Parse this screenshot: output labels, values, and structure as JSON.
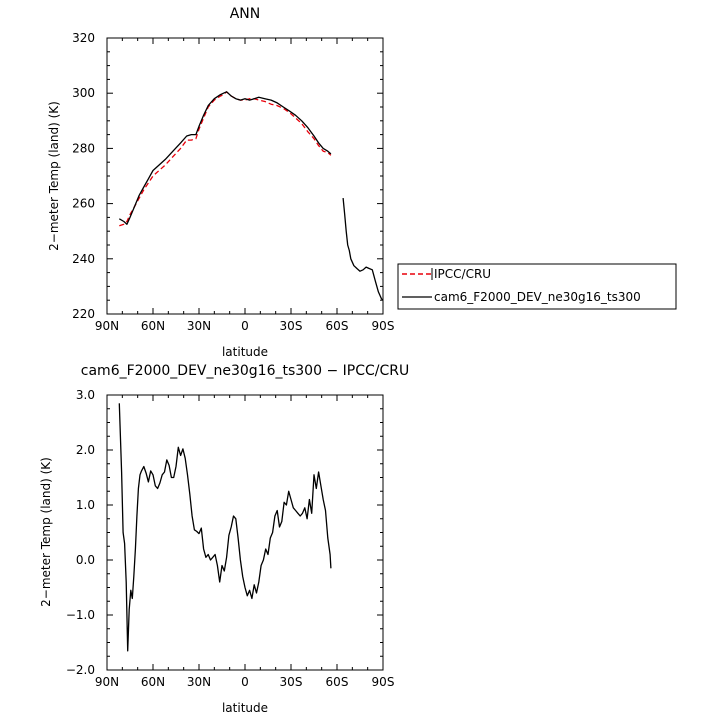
{
  "chart_data": [
    {
      "type": "line",
      "title": "ANN",
      "xlabel": "latitude",
      "ylabel": "2−meter Temp (land) (K)",
      "xlim": [
        90,
        -90
      ],
      "ylim": [
        220,
        320
      ],
      "x_ticks": [
        90,
        60,
        30,
        0,
        -30,
        -60,
        -90
      ],
      "x_tick_labels": [
        "90N",
        "60N",
        "30N",
        "0",
        "30S",
        "60S",
        "90S"
      ],
      "y_ticks": [
        220,
        240,
        260,
        280,
        300,
        320
      ],
      "y_tick_labels": [
        "220",
        "240",
        "260",
        "280",
        "300",
        "320"
      ],
      "legend_position": "right",
      "series": [
        {
          "name": "IPCC/CRU",
          "color": "#e8000b",
          "dash": "dashed",
          "x": [
            82,
            79,
            77,
            75,
            72,
            69,
            66,
            63,
            60,
            56,
            52,
            47,
            42,
            38,
            35,
            32,
            30,
            27,
            24,
            20,
            16,
            14,
            12,
            9,
            6,
            3,
            0,
            -3,
            -6,
            -9,
            -13,
            -17,
            -21,
            -25,
            -29,
            -33,
            -37,
            -41,
            -45,
            -48,
            -51,
            -54,
            -56
          ],
          "y": [
            252,
            252.5,
            253.5,
            256,
            259,
            262,
            265,
            267.5,
            270,
            272,
            274,
            277,
            280,
            283,
            283,
            283.5,
            287,
            291,
            295,
            297.5,
            299,
            299.5,
            300.5,
            299,
            298,
            297.5,
            297.5,
            298,
            298,
            297.5,
            297,
            296,
            295.5,
            294.5,
            293,
            291,
            289,
            286,
            283.5,
            281,
            279,
            278.5,
            277.5
          ]
        },
        {
          "name": "cam6_F2000_DEV_ne30g16_ts300",
          "color": "#000000",
          "dash": "solid",
          "x": [
            82,
            79,
            77,
            75,
            72,
            69,
            66,
            63,
            60,
            56,
            52,
            47,
            42,
            38,
            35,
            32,
            30,
            27,
            24,
            20,
            16,
            14,
            12,
            9,
            6,
            3,
            0,
            -3,
            -6,
            -9,
            -13,
            -17,
            -21,
            -25,
            -29,
            -33,
            -37,
            -41,
            -45,
            -48,
            -51,
            -54,
            -56
          ],
          "y": [
            254.5,
            253.5,
            252.5,
            255,
            259,
            263,
            266,
            269,
            272,
            274,
            276,
            279,
            282,
            284.5,
            285,
            285,
            288,
            292,
            295.5,
            298,
            299.5,
            300,
            300.5,
            299,
            298,
            297.5,
            298,
            297.5,
            298,
            298.5,
            298,
            297.5,
            296.5,
            295,
            293.5,
            292,
            290,
            287.5,
            284.5,
            282,
            280,
            279,
            278
          ]
        },
        {
          "name": "",
          "color": "#000000",
          "dash": "solid",
          "x": [
            -64,
            -65,
            -66,
            -67,
            -68,
            -69,
            -71,
            -73,
            -75,
            -77,
            -79,
            -81,
            -83,
            -85,
            -87,
            -89,
            -90
          ],
          "y": [
            262,
            256,
            250,
            245,
            243,
            240,
            237.5,
            236.5,
            235.5,
            236,
            237,
            236.5,
            236,
            232,
            228,
            225.5,
            225
          ]
        }
      ]
    },
    {
      "type": "line",
      "title": "cam6_F2000_DEV_ne30g16_ts300 − IPCC/CRU",
      "xlabel": "latitude",
      "ylabel": "2−meter Temp (land) (K)",
      "xlim": [
        90,
        -90
      ],
      "ylim": [
        -2,
        3
      ],
      "x_ticks": [
        90,
        60,
        30,
        0,
        -30,
        -60,
        -90
      ],
      "x_tick_labels": [
        "90N",
        "60N",
        "30N",
        "0",
        "30S",
        "60S",
        "90S"
      ],
      "y_ticks": [
        -2,
        -1,
        0,
        1,
        2,
        3
      ],
      "y_tick_labels": [
        "−2.0",
        "−1.0",
        "0.0",
        "1.0",
        "2.0",
        "3.0"
      ],
      "series": [
        {
          "name": "",
          "color": "#000000",
          "dash": "solid",
          "x": [
            82,
            80.5,
            79.5,
            78.5,
            77.5,
            76.5,
            75.5,
            74.5,
            73.5,
            72.5,
            71.5,
            70.5,
            69.5,
            68.5,
            67.5,
            66,
            64.5,
            63,
            61.5,
            60,
            58.5,
            57,
            55.5,
            54,
            52.5,
            51,
            49.5,
            48,
            46.5,
            45,
            43.5,
            42,
            40.5,
            39,
            37.5,
            36,
            34.5,
            33,
            31.5,
            30,
            28.5,
            27,
            25.5,
            24,
            22.5,
            21,
            19.5,
            18,
            16.5,
            15,
            13.5,
            12,
            10.5,
            9,
            7.5,
            6,
            4.5,
            3,
            1.5,
            0,
            -1.5,
            -3,
            -4.5,
            -6,
            -7.5,
            -9,
            -10.5,
            -12,
            -13.5,
            -15,
            -16.5,
            -18,
            -19.5,
            -21,
            -22.5,
            -24,
            -25.5,
            -27,
            -28.5,
            -30,
            -31.5,
            -33,
            -34.5,
            -36,
            -37.5,
            -39,
            -40.5,
            -42,
            -43.5,
            -45,
            -46.5,
            -48,
            -49.5,
            -51,
            -52.5,
            -54,
            -55.5,
            -56
          ],
          "y": [
            2.85,
            1.6,
            0.5,
            0.3,
            -0.4,
            -1.65,
            -0.9,
            -0.55,
            -0.7,
            -0.3,
            0.2,
            0.8,
            1.3,
            1.55,
            1.62,
            1.7,
            1.58,
            1.42,
            1.62,
            1.55,
            1.35,
            1.3,
            1.4,
            1.55,
            1.6,
            1.82,
            1.72,
            1.5,
            1.5,
            1.7,
            2.05,
            1.9,
            2.02,
            1.85,
            1.55,
            1.2,
            0.8,
            0.55,
            0.52,
            0.48,
            0.58,
            0.2,
            0.05,
            0.1,
            0.0,
            0.05,
            0.1,
            -0.1,
            -0.4,
            -0.1,
            -0.2,
            0.05,
            0.45,
            0.6,
            0.8,
            0.75,
            0.4,
            0.0,
            -0.3,
            -0.5,
            -0.65,
            -0.55,
            -0.7,
            -0.45,
            -0.6,
            -0.4,
            -0.1,
            0.0,
            0.2,
            0.1,
            0.4,
            0.5,
            0.8,
            0.9,
            0.6,
            0.7,
            1.05,
            1.0,
            1.25,
            1.1,
            0.95,
            0.9,
            0.85,
            0.8,
            0.85,
            0.95,
            0.75,
            1.1,
            0.85,
            1.55,
            1.3,
            1.6,
            1.35,
            1.1,
            0.9,
            0.4,
            0.1,
            -0.15
          ]
        }
      ]
    }
  ]
}
